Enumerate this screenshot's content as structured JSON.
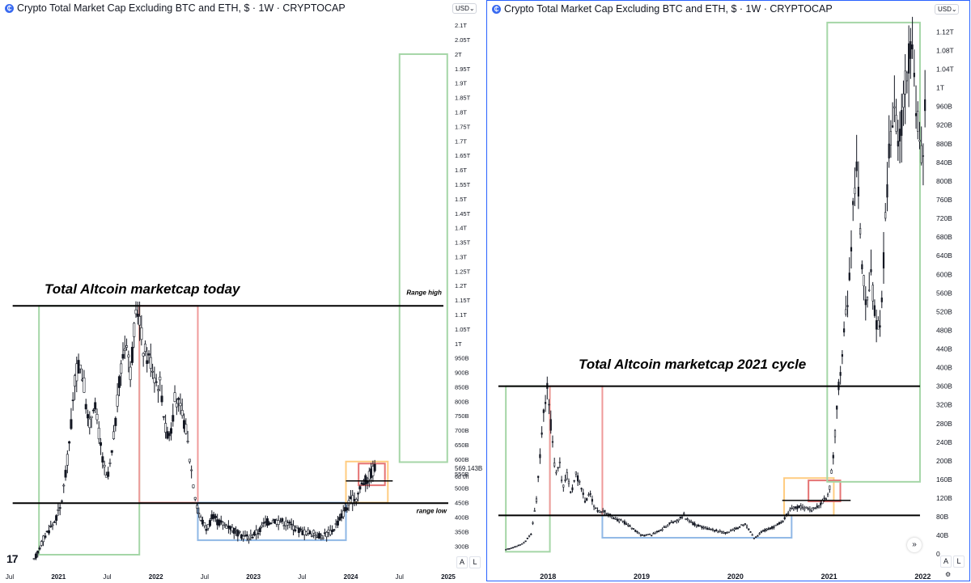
{
  "chart_data": [
    {
      "type": "candlestick",
      "title": "Crypto Total Market Cap Excluding BTC and ETH, $ · 1W · CRYPTOCAP",
      "currency": "USD",
      "annotation_title": "Total Altcoin marketcap today",
      "label_high": "Range high",
      "label_low": "range low",
      "current_price": "569.143B",
      "countdown": "6d 0h",
      "x_ticks": [
        "Jul",
        "2021",
        "Jul",
        "2022",
        "Jul",
        "2023",
        "Jul",
        "2024",
        "Jul",
        "2025"
      ],
      "x_tick_times": [
        2020.5,
        2021.0,
        2021.5,
        2022.0,
        2022.5,
        2023.0,
        2023.5,
        2024.0,
        2024.5,
        2025.0
      ],
      "y_ticks": [
        "2.1T",
        "2.05T",
        "2T",
        "1.95T",
        "1.9T",
        "1.85T",
        "1.8T",
        "1.75T",
        "1.7T",
        "1.65T",
        "1.6T",
        "1.55T",
        "1.5T",
        "1.45T",
        "1.4T",
        "1.35T",
        "1.3T",
        "1.25T",
        "1.2T",
        "1.15T",
        "1.1T",
        "1.05T",
        "1T",
        "950B",
        "900B",
        "850B",
        "800B",
        "750B",
        "700B",
        "650B",
        "600B",
        "550B",
        "500B",
        "450B",
        "400B",
        "350B",
        "300B"
      ],
      "y_tick_values_billions": [
        2100,
        2050,
        2000,
        1950,
        1900,
        1850,
        1800,
        1750,
        1700,
        1650,
        1600,
        1550,
        1500,
        1450,
        1400,
        1350,
        1300,
        1250,
        1200,
        1150,
        1100,
        1050,
        1000,
        950,
        900,
        850,
        800,
        750,
        700,
        650,
        600,
        550,
        500,
        450,
        400,
        350,
        300
      ],
      "x_range": [
        2020.4,
        2025.05
      ],
      "y_range_billions": [
        270,
        2120
      ],
      "series_points": [
        [
          2020.75,
          250
        ],
        [
          2020.85,
          330
        ],
        [
          2020.95,
          380
        ],
        [
          2021.02,
          430
        ],
        [
          2021.08,
          560
        ],
        [
          2021.13,
          720
        ],
        [
          2021.17,
          880
        ],
        [
          2021.22,
          940
        ],
        [
          2021.27,
          840
        ],
        [
          2021.31,
          700
        ],
        [
          2021.36,
          800
        ],
        [
          2021.4,
          730
        ],
        [
          2021.45,
          600
        ],
        [
          2021.5,
          520
        ],
        [
          2021.55,
          620
        ],
        [
          2021.6,
          780
        ],
        [
          2021.65,
          940
        ],
        [
          2021.7,
          1020
        ],
        [
          2021.74,
          900
        ],
        [
          2021.78,
          1050
        ],
        [
          2021.82,
          1130
        ],
        [
          2021.86,
          1000
        ],
        [
          2021.9,
          960
        ],
        [
          2021.95,
          940
        ],
        [
          2022.0,
          870
        ],
        [
          2022.05,
          860
        ],
        [
          2022.1,
          700
        ],
        [
          2022.15,
          690
        ],
        [
          2022.2,
          820
        ],
        [
          2022.26,
          760
        ],
        [
          2022.3,
          720
        ],
        [
          2022.35,
          600
        ],
        [
          2022.4,
          480
        ],
        [
          2022.45,
          400
        ],
        [
          2022.52,
          360
        ],
        [
          2022.58,
          400
        ],
        [
          2022.65,
          380
        ],
        [
          2022.75,
          370
        ],
        [
          2022.85,
          340
        ],
        [
          2022.95,
          330
        ],
        [
          2023.05,
          350
        ],
        [
          2023.12,
          380
        ],
        [
          2023.2,
          390
        ],
        [
          2023.3,
          385
        ],
        [
          2023.4,
          370
        ],
        [
          2023.5,
          350
        ],
        [
          2023.6,
          345
        ],
        [
          2023.7,
          335
        ],
        [
          2023.8,
          350
        ],
        [
          2023.88,
          390
        ],
        [
          2023.95,
          430
        ],
        [
          2024.0,
          455
        ],
        [
          2024.06,
          470
        ],
        [
          2024.12,
          520
        ],
        [
          2024.17,
          530
        ],
        [
          2024.22,
          560
        ],
        [
          2024.25,
          569
        ]
      ],
      "lines": [
        {
          "label": "Range high",
          "y": 1130,
          "x": [
            2020.53,
            2024.95
          ]
        },
        {
          "label": "range low",
          "y": 448,
          "x": [
            2020.53,
            2025.0
          ]
        },
        {
          "label": "",
          "y": 525,
          "x": [
            2023.95,
            2024.43
          ]
        }
      ],
      "boxes": [
        {
          "color": "#a5d6a7",
          "x": [
            2020.8,
            2021.83
          ],
          "y": [
            270,
            1130
          ]
        },
        {
          "color": "#ef9a9a",
          "x": [
            2021.83,
            2022.43
          ],
          "y": [
            450,
            1130
          ]
        },
        {
          "color": "#90b8e6",
          "x": [
            2022.43,
            2023.95
          ],
          "y": [
            320,
            450
          ]
        },
        {
          "color": "#ffcc80",
          "x": [
            2023.95,
            2024.38
          ],
          "y": [
            450,
            592
          ]
        },
        {
          "color": "#e57373",
          "x": [
            2024.08,
            2024.35
          ],
          "y": [
            510,
            585
          ]
        },
        {
          "color": "#a5d6a7",
          "x": [
            2024.5,
            2024.99
          ],
          "y": [
            590,
            2000
          ]
        }
      ]
    },
    {
      "type": "candlestick",
      "title": "Crypto Total Market Cap Excluding BTC and ETH, $ · 1W · CRYPTOCAP",
      "currency": "USD",
      "annotation_title": "Total Altcoin marketcap 2021 cycle",
      "x_ticks": [
        "2018",
        "2019",
        "2020",
        "2021",
        "2022"
      ],
      "x_tick_times": [
        2018.0,
        2019.0,
        2020.0,
        2021.0,
        2022.0
      ],
      "y_ticks": [
        "1.12T",
        "1.08T",
        "1.04T",
        "1T",
        "960B",
        "920B",
        "880B",
        "840B",
        "800B",
        "760B",
        "720B",
        "680B",
        "640B",
        "600B",
        "560B",
        "520B",
        "480B",
        "440B",
        "400B",
        "360B",
        "320B",
        "280B",
        "240B",
        "200B",
        "160B",
        "120B",
        "80B",
        "40B",
        "0"
      ],
      "y_tick_values_billions": [
        1120,
        1080,
        1040,
        1000,
        960,
        920,
        880,
        840,
        800,
        760,
        720,
        680,
        640,
        600,
        560,
        520,
        480,
        440,
        400,
        360,
        320,
        280,
        240,
        200,
        160,
        120,
        80,
        40,
        0
      ],
      "x_range": [
        2017.35,
        2022.1
      ],
      "y_range_billions": [
        -10,
        1145
      ],
      "series_points": [
        [
          2017.55,
          10
        ],
        [
          2017.65,
          16
        ],
        [
          2017.75,
          25
        ],
        [
          2017.82,
          45
        ],
        [
          2017.88,
          120
        ],
        [
          2017.93,
          250
        ],
        [
          2017.97,
          330
        ],
        [
          2018.0,
          360
        ],
        [
          2018.04,
          250
        ],
        [
          2018.08,
          170
        ],
        [
          2018.12,
          200
        ],
        [
          2018.16,
          140
        ],
        [
          2018.2,
          170
        ],
        [
          2018.25,
          130
        ],
        [
          2018.3,
          175
        ],
        [
          2018.34,
          150
        ],
        [
          2018.4,
          110
        ],
        [
          2018.45,
          130
        ],
        [
          2018.5,
          100
        ],
        [
          2018.55,
          90
        ],
        [
          2018.6,
          95
        ],
        [
          2018.7,
          75
        ],
        [
          2018.8,
          70
        ],
        [
          2018.9,
          55
        ],
        [
          2019.0,
          40
        ],
        [
          2019.1,
          42
        ],
        [
          2019.2,
          50
        ],
        [
          2019.3,
          65
        ],
        [
          2019.4,
          75
        ],
        [
          2019.45,
          85
        ],
        [
          2019.5,
          70
        ],
        [
          2019.6,
          60
        ],
        [
          2019.7,
          55
        ],
        [
          2019.8,
          50
        ],
        [
          2019.9,
          45
        ],
        [
          2020.0,
          55
        ],
        [
          2020.1,
          65
        ],
        [
          2020.2,
          35
        ],
        [
          2020.3,
          50
        ],
        [
          2020.4,
          58
        ],
        [
          2020.5,
          70
        ],
        [
          2020.6,
          100
        ],
        [
          2020.7,
          100
        ],
        [
          2020.8,
          95
        ],
        [
          2020.9,
          105
        ],
        [
          2021.0,
          130
        ],
        [
          2021.05,
          220
        ],
        [
          2021.1,
          350
        ],
        [
          2021.15,
          440
        ],
        [
          2021.2,
          560
        ],
        [
          2021.25,
          720
        ],
        [
          2021.3,
          820
        ],
        [
          2021.35,
          620
        ],
        [
          2021.4,
          520
        ],
        [
          2021.45,
          600
        ],
        [
          2021.5,
          500
        ],
        [
          2021.55,
          490
        ],
        [
          2021.6,
          700
        ],
        [
          2021.65,
          900
        ],
        [
          2021.7,
          960
        ],
        [
          2021.75,
          880
        ],
        [
          2021.8,
          1000
        ],
        [
          2021.84,
          1050
        ],
        [
          2021.88,
          1120
        ],
        [
          2021.92,
          980
        ],
        [
          2021.96,
          900
        ],
        [
          2021.99,
          850
        ],
        [
          2022.03,
          960
        ]
      ],
      "lines": [
        {
          "label": "",
          "y": 360,
          "x": [
            2017.47,
            2021.97
          ]
        },
        {
          "label": "",
          "y": 83,
          "x": [
            2017.47,
            2021.97
          ]
        },
        {
          "label": "",
          "y": 115,
          "x": [
            2020.5,
            2021.23
          ]
        }
      ],
      "boxes": [
        {
          "color": "#a5d6a7",
          "x": [
            2017.55,
            2018.02
          ],
          "y": [
            5,
            360
          ]
        },
        {
          "color": "#ef9a9a",
          "x": [
            2018.02,
            2018.58
          ],
          "y": [
            83,
            360
          ]
        },
        {
          "color": "#90b8e6",
          "x": [
            2018.58,
            2020.6
          ],
          "y": [
            35,
            83
          ]
        },
        {
          "color": "#ffcc80",
          "x": [
            2020.52,
            2021.05
          ],
          "y": [
            83,
            163
          ]
        },
        {
          "color": "#e57373",
          "x": [
            2020.78,
            2021.12
          ],
          "y": [
            113,
            158
          ]
        },
        {
          "color": "#a5d6a7",
          "x": [
            2020.98,
            2021.97
          ],
          "y": [
            155,
            1140
          ]
        }
      ]
    }
  ]
}
